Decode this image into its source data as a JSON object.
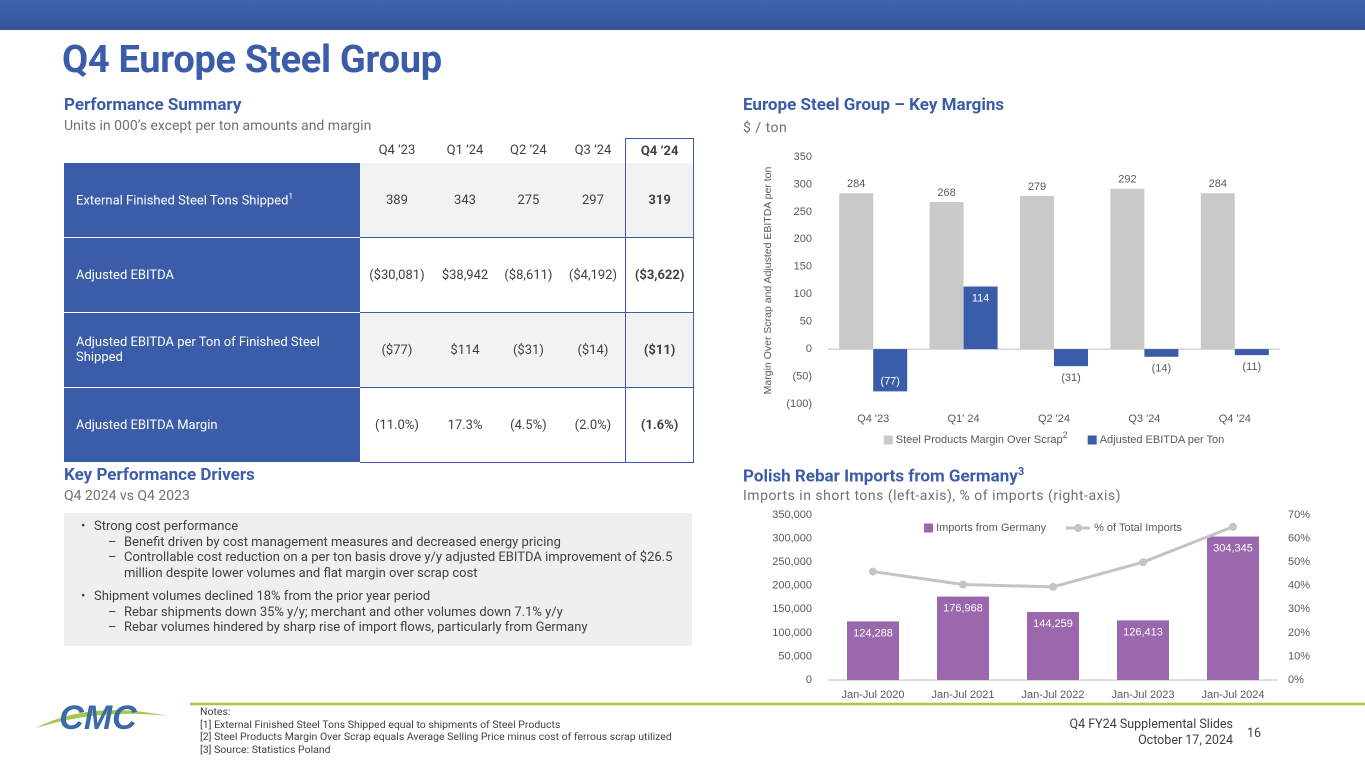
{
  "title": "Q4 Europe Steel Group",
  "logo": "CMC",
  "performance_summary": {
    "title": "Performance Summary",
    "subtitle": "Units in 000’s except per ton amounts and margin",
    "columns": [
      "Q4 ’23",
      "Q1 ’24",
      "Q2 ’24",
      "Q3 ’24",
      "Q4 ’24"
    ],
    "highlight_column": 4,
    "rows": [
      {
        "label": "External Finished Steel Tons Shipped",
        "note": "1",
        "values": [
          "389",
          "343",
          "275",
          "297",
          "319"
        ]
      },
      {
        "label": "Adjusted EBITDA",
        "values": [
          "($30,081)",
          "$38,942",
          "($8,611)",
          "($4,192)",
          "($3,622)"
        ]
      },
      {
        "label": "Adjusted EBITDA per Ton of Finished Steel Shipped",
        "values": [
          "($77)",
          "$114",
          "($31)",
          "($14)",
          "($11)"
        ]
      },
      {
        "label": "Adjusted EBITDA Margin",
        "values": [
          "(11.0%)",
          "17.3%",
          "(4.5%)",
          "(2.0%)",
          "(1.6%)"
        ]
      }
    ]
  },
  "key_drivers": {
    "title": "Key Performance Drivers",
    "subtitle": "Q4 2024 vs Q4 2023",
    "bullets": [
      {
        "text": "Strong cost performance",
        "subs": [
          "Benefit driven by cost management measures and decreased energy pricing",
          "Controllable cost reduction on a per ton basis drove y/y adjusted EBITDA improvement of $26.5 million despite lower volumes and flat margin over scrap cost"
        ]
      },
      {
        "text": "Shipment volumes declined 18% from the prior year period",
        "subs": [
          "Rebar shipments down 35% y/y; merchant and other volumes down 7.1% y/y",
          "Rebar volumes hindered by sharp rise of import flows, particularly from Germany"
        ]
      }
    ]
  },
  "chart_data": [
    {
      "type": "bar",
      "title": "Europe Steel Group – Key Margins",
      "subtitle": "$ / ton",
      "y_label": "Margin Over Scrap and Adjusted EBITDA per ton",
      "categories": [
        "Q4 '23",
        "Q1' 24",
        "Q2 '24",
        "Q3 '24",
        "Q4 '24"
      ],
      "series": [
        {
          "name": "Steel Products Margin Over Scrap",
          "name_note": "2",
          "color": "#c9c9c9",
          "values": [
            284,
            268,
            279,
            292,
            284
          ]
        },
        {
          "name": "Adjusted EBITDA per Ton",
          "color": "#3b5ca8",
          "values": [
            -77,
            114,
            -31,
            -14,
            -11
          ],
          "value_labels": [
            "(77)",
            "114",
            "(31)",
            "(14)",
            "(11)"
          ]
        }
      ],
      "ylim": [
        -100,
        350
      ],
      "yticks": [
        {
          "value": -100,
          "label": "(100)"
        },
        {
          "value": -50,
          "label": "(50)"
        },
        0,
        50,
        100,
        150,
        200,
        250,
        300,
        350
      ],
      "grid": false,
      "legend": "bottom"
    },
    {
      "type": "bar",
      "title": "Polish Rebar Imports from Germany",
      "title_note": "3",
      "subtitle": "Imports in short tons (left-axis), % of imports (right-axis)",
      "categories": [
        "Jan-Jul 2020",
        "Jan-Jul 2021",
        "Jan-Jul 2022",
        "Jan-Jul 2023",
        "Jan-Jul 2024"
      ],
      "series": [
        {
          "name": "Imports from Germany",
          "type": "bar",
          "color": "#9b67ad",
          "values": [
            124288,
            176968,
            144259,
            126413,
            304345
          ],
          "value_labels": [
            "124,288",
            "176,968",
            "144,259",
            "126,413",
            "304,345"
          ]
        },
        {
          "name": "% of Total Imports",
          "type": "line",
          "axis": "y2",
          "color": "#c4c4c4",
          "values": [
            46,
            40.5,
            39.5,
            50,
            65
          ]
        }
      ],
      "ylim": [
        0,
        350000
      ],
      "yticks": [
        0,
        {
          "value": 50000,
          "label": "50,000"
        },
        {
          "value": 100000,
          "label": "100,000"
        },
        {
          "value": 150000,
          "label": "150,000"
        },
        {
          "value": 200000,
          "label": "200,000"
        },
        {
          "value": 250000,
          "label": "250,000"
        },
        {
          "value": 300000,
          "label": "300,000"
        },
        {
          "value": 350000,
          "label": "350,000"
        }
      ],
      "y2lim": [
        0,
        70
      ],
      "y2ticks": [
        {
          "value": 0,
          "label": "0%"
        },
        {
          "value": 10,
          "label": "10%"
        },
        {
          "value": 20,
          "label": "20%"
        },
        {
          "value": 30,
          "label": "30%"
        },
        {
          "value": 40,
          "label": "40%"
        },
        {
          "value": 50,
          "label": "50%"
        },
        {
          "value": 60,
          "label": "60%"
        },
        {
          "value": 70,
          "label": "70%"
        }
      ],
      "grid": false,
      "legend": "top"
    }
  ],
  "notes": {
    "heading": "Notes:",
    "items": [
      "[1]  External Finished Steel Tons Shipped equal to shipments of Steel Products",
      "[2]  Steel Products Margin Over Scrap equals Average Selling Price minus cost of ferrous scrap utilized",
      "[3]  Source: Statistics Poland"
    ]
  },
  "footer": {
    "deck": "Q4 FY24 Supplemental Slides",
    "date": "October 17, 2024",
    "page": "16"
  }
}
